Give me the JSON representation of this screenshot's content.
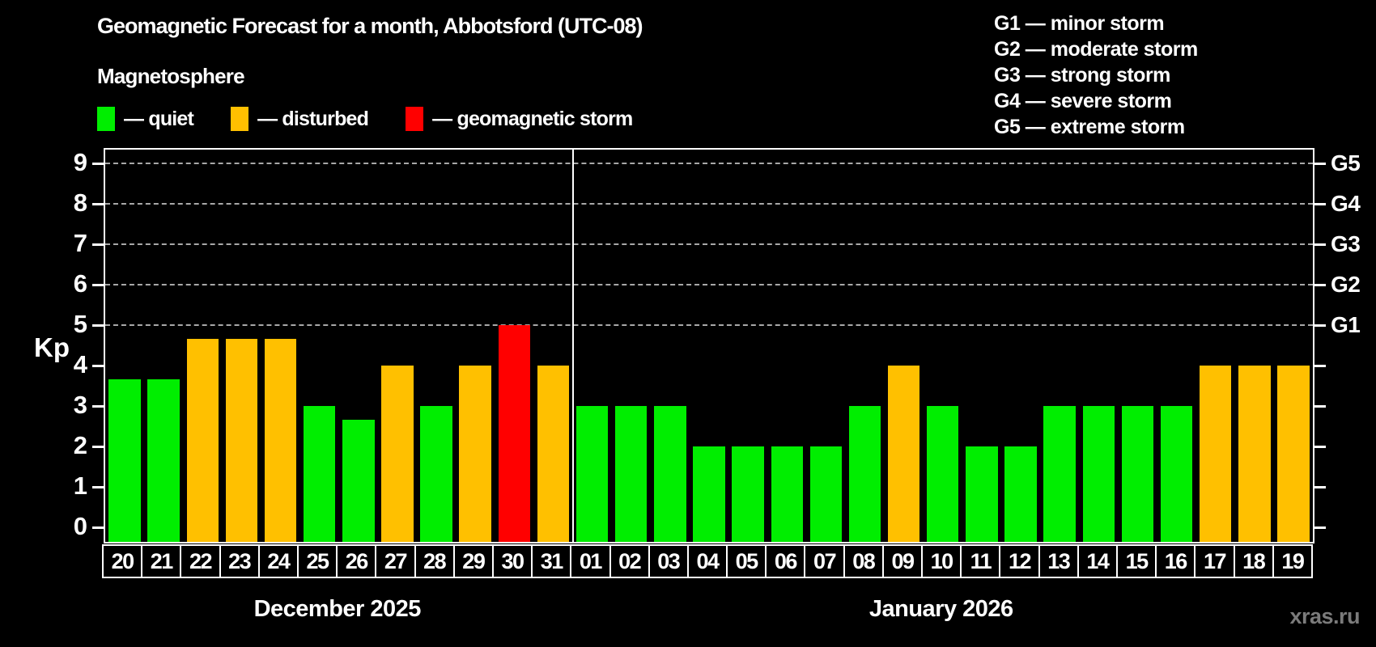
{
  "title": "Geomagnetic Forecast for a month, Abbotsford (UTC-08)",
  "subtitle": "Magnetosphere",
  "legend": {
    "items": [
      {
        "label": "— quiet",
        "color": "#00ee00",
        "key": "quiet"
      },
      {
        "label": "— disturbed",
        "color": "#ffc000",
        "key": "disturbed"
      },
      {
        "label": "— geomagnetic storm",
        "color": "#ff0000",
        "key": "storm"
      }
    ]
  },
  "storm_scale_legend": {
    "items": [
      "G1 — minor storm",
      "G2 — moderate storm",
      "G3 — strong storm",
      "G4 — severe storm",
      "G5 — extreme storm"
    ]
  },
  "watermark": "xras.ru",
  "chart_data": {
    "type": "bar",
    "ylabel": "Kp",
    "ylim": [
      0,
      9
    ],
    "y_ticks": [
      0,
      1,
      2,
      3,
      4,
      5,
      6,
      7,
      8,
      9
    ],
    "grid_levels": [
      5,
      6,
      7,
      8,
      9
    ],
    "grid_on": true,
    "legend_position": "top-left",
    "right_axis_labels": [
      {
        "kp": 5,
        "label": "G1"
      },
      {
        "kp": 6,
        "label": "G2"
      },
      {
        "kp": 7,
        "label": "G3"
      },
      {
        "kp": 8,
        "label": "G4"
      },
      {
        "kp": 9,
        "label": "G5"
      }
    ],
    "series_colors": {
      "quiet": "#00ee00",
      "disturbed": "#ffc000",
      "storm": "#ff0000"
    },
    "months": [
      {
        "label": "December 2025",
        "days": 12
      },
      {
        "label": "January 2026",
        "days": 19
      }
    ],
    "bars": [
      {
        "date": "20",
        "kp": 3.67,
        "level": "quiet"
      },
      {
        "date": "21",
        "kp": 3.67,
        "level": "quiet"
      },
      {
        "date": "22",
        "kp": 4.67,
        "level": "disturbed"
      },
      {
        "date": "23",
        "kp": 4.67,
        "level": "disturbed"
      },
      {
        "date": "24",
        "kp": 4.67,
        "level": "disturbed"
      },
      {
        "date": "25",
        "kp": 3.0,
        "level": "quiet"
      },
      {
        "date": "26",
        "kp": 2.67,
        "level": "quiet"
      },
      {
        "date": "27",
        "kp": 4.0,
        "level": "disturbed"
      },
      {
        "date": "28",
        "kp": 3.0,
        "level": "quiet"
      },
      {
        "date": "29",
        "kp": 4.0,
        "level": "disturbed"
      },
      {
        "date": "30",
        "kp": 5.0,
        "level": "storm"
      },
      {
        "date": "31",
        "kp": 4.0,
        "level": "disturbed"
      },
      {
        "date": "01",
        "kp": 3.0,
        "level": "quiet"
      },
      {
        "date": "02",
        "kp": 3.0,
        "level": "quiet"
      },
      {
        "date": "03",
        "kp": 3.0,
        "level": "quiet"
      },
      {
        "date": "04",
        "kp": 2.0,
        "level": "quiet"
      },
      {
        "date": "05",
        "kp": 2.0,
        "level": "quiet"
      },
      {
        "date": "06",
        "kp": 2.0,
        "level": "quiet"
      },
      {
        "date": "07",
        "kp": 2.0,
        "level": "quiet"
      },
      {
        "date": "08",
        "kp": 3.0,
        "level": "quiet"
      },
      {
        "date": "09",
        "kp": 4.0,
        "level": "disturbed"
      },
      {
        "date": "10",
        "kp": 3.0,
        "level": "quiet"
      },
      {
        "date": "11",
        "kp": 2.0,
        "level": "quiet"
      },
      {
        "date": "12",
        "kp": 2.0,
        "level": "quiet"
      },
      {
        "date": "13",
        "kp": 3.0,
        "level": "quiet"
      },
      {
        "date": "14",
        "kp": 3.0,
        "level": "quiet"
      },
      {
        "date": "15",
        "kp": 3.0,
        "level": "quiet"
      },
      {
        "date": "16",
        "kp": 3.0,
        "level": "quiet"
      },
      {
        "date": "17",
        "kp": 4.0,
        "level": "disturbed"
      },
      {
        "date": "18",
        "kp": 4.0,
        "level": "disturbed"
      },
      {
        "date": "19",
        "kp": 4.0,
        "level": "disturbed"
      }
    ]
  }
}
